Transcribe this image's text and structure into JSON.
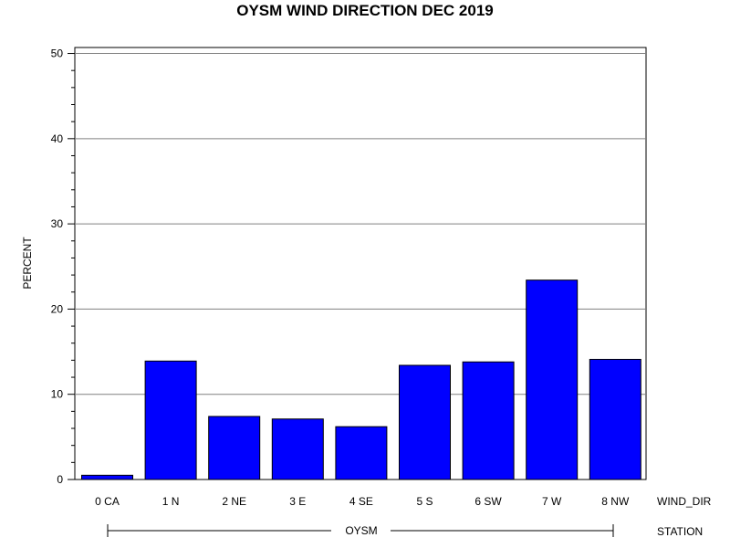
{
  "chart_data": {
    "type": "bar",
    "title": "OYSM WIND DIRECTION DEC 2019",
    "ylabel": "PERCENT",
    "xlabel": "WIND_DIR",
    "group_label": "STATION",
    "group_value": "OYSM",
    "categories": [
      "0 CA",
      "1 N",
      "2 NE",
      "3 E",
      "4 SE",
      "5 S",
      "6 SW",
      "7 W",
      "8 NW"
    ],
    "values": [
      0.5,
      13.9,
      7.4,
      7.1,
      6.2,
      13.4,
      13.8,
      23.4,
      14.1
    ],
    "yticks": [
      0,
      10,
      20,
      30,
      40,
      50
    ],
    "ylim": [
      0,
      50.7
    ],
    "grid": true,
    "bar_color": "#0000FF"
  }
}
